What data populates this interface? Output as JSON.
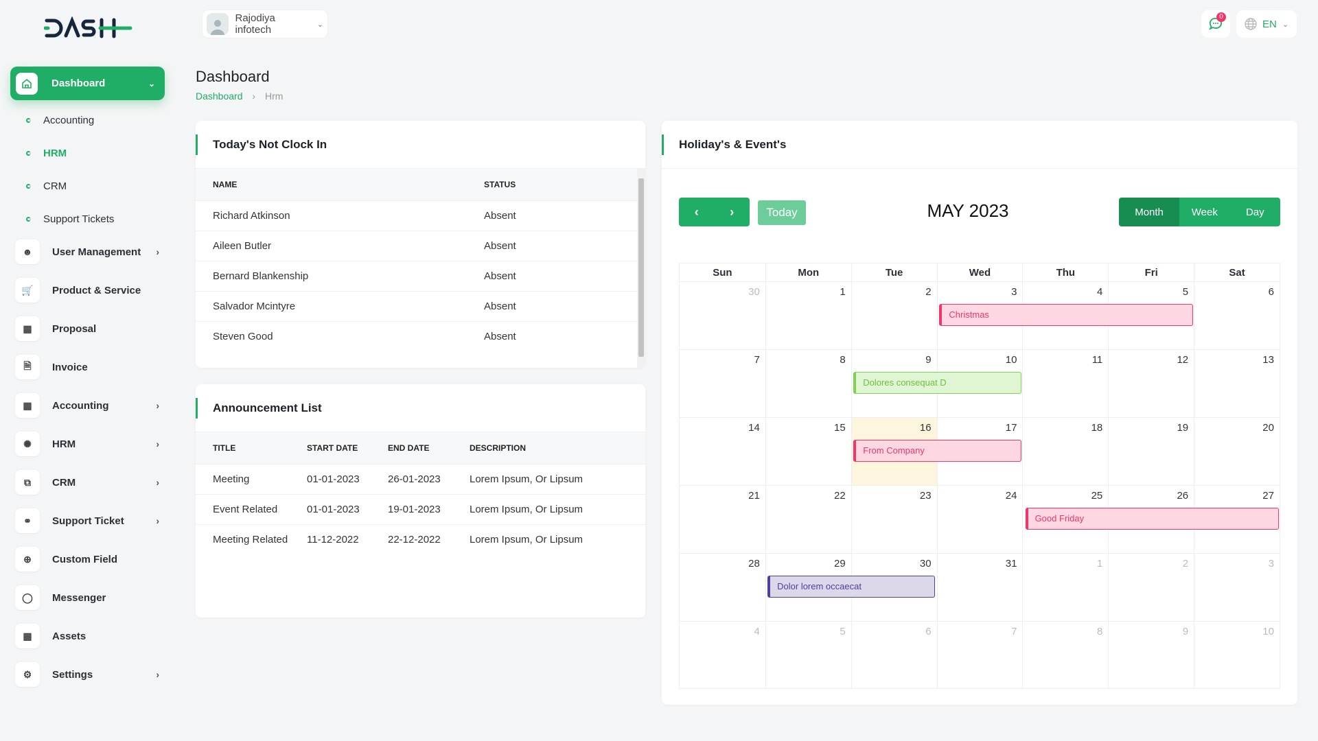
{
  "header": {
    "logo_text": "DASH",
    "company": "Rajodiya infotech",
    "notification_count": "0",
    "language": "EN"
  },
  "sidebar": {
    "dashboard": "Dashboard",
    "submenu": [
      {
        "label": "Accounting"
      },
      {
        "label": "HRM",
        "active": true
      },
      {
        "label": "CRM"
      },
      {
        "label": "Support Tickets"
      }
    ],
    "items": [
      {
        "label": "User Management",
        "icon": "users-icon",
        "chevron": true
      },
      {
        "label": "Product & Service",
        "icon": "cart-icon",
        "chevron": false
      },
      {
        "label": "Proposal",
        "icon": "proposal-icon",
        "chevron": false
      },
      {
        "label": "Invoice",
        "icon": "file-icon",
        "chevron": false
      },
      {
        "label": "Accounting",
        "icon": "apps-icon",
        "chevron": true
      },
      {
        "label": "HRM",
        "icon": "hrm-icon",
        "chevron": true
      },
      {
        "label": "CRM",
        "icon": "layers-icon",
        "chevron": true
      },
      {
        "label": "Support Ticket",
        "icon": "headphones-icon",
        "chevron": true
      },
      {
        "label": "Custom Field",
        "icon": "plus-circle-icon",
        "chevron": false
      },
      {
        "label": "Messenger",
        "icon": "message-icon",
        "chevron": false
      },
      {
        "label": "Assets",
        "icon": "calculator-icon",
        "chevron": false
      },
      {
        "label": "Settings",
        "icon": "gear-icon",
        "chevron": true
      }
    ]
  },
  "page": {
    "title": "Dashboard",
    "breadcrumb": [
      "Dashboard",
      "Hrm"
    ]
  },
  "not_clock_in": {
    "title": "Today's Not Clock In",
    "columns": [
      "NAME",
      "STATUS"
    ],
    "rows": [
      [
        "Richard Atkinson",
        "Absent"
      ],
      [
        "Aileen Butler",
        "Absent"
      ],
      [
        "Bernard Blankenship",
        "Absent"
      ],
      [
        "Salvador Mcintyre",
        "Absent"
      ],
      [
        "Steven Good",
        "Absent"
      ]
    ]
  },
  "announcements": {
    "title": "Announcement List",
    "columns": [
      "TITLE",
      "START DATE",
      "END DATE",
      "DESCRIPTION"
    ],
    "rows": [
      [
        "Meeting",
        "01-01-2023",
        "26-01-2023",
        "Lorem Ipsum, Or Lipsum"
      ],
      [
        "Event Related",
        "01-01-2023",
        "19-01-2023",
        "Lorem Ipsum, Or Lipsum"
      ],
      [
        "Meeting Related",
        "11-12-2022",
        "22-12-2022",
        "Lorem Ipsum, Or Lipsum"
      ]
    ]
  },
  "calendar": {
    "title": "Holiday's & Event's",
    "month_label": "MAY 2023",
    "today_label": "Today",
    "views": [
      "Month",
      "Week",
      "Day"
    ],
    "active_view": "Month",
    "weekdays": [
      "Sun",
      "Mon",
      "Tue",
      "Wed",
      "Thu",
      "Fri",
      "Sat"
    ],
    "weeks": [
      [
        "30",
        "1",
        "2",
        "3",
        "4",
        "5",
        "6"
      ],
      [
        "7",
        "8",
        "9",
        "10",
        "11",
        "12",
        "13"
      ],
      [
        "14",
        "15",
        "16",
        "17",
        "18",
        "19",
        "20"
      ],
      [
        "21",
        "22",
        "23",
        "24",
        "25",
        "26",
        "27"
      ],
      [
        "28",
        "29",
        "30",
        "31",
        "1",
        "2",
        "3"
      ],
      [
        "4",
        "5",
        "6",
        "7",
        "8",
        "9",
        "10"
      ]
    ],
    "today": "16",
    "events": [
      {
        "title": "Christmas",
        "week": 0,
        "start": 3,
        "end": 5,
        "bg": "#fdd7e2",
        "border": "#f0366b",
        "color": "#f0366b"
      },
      {
        "title": "Dolores consequat D",
        "week": 1,
        "start": 2,
        "end": 3,
        "bg": "#dff5d3",
        "border": "#7dd352",
        "color": "#6cc13f"
      },
      {
        "title": "From Company",
        "week": 2,
        "start": 2,
        "end": 3,
        "bg": "#fdd7e2",
        "border": "#f0366b",
        "color": "#f0366b"
      },
      {
        "title": "Good Friday",
        "week": 3,
        "start": 4,
        "end": 6,
        "bg": "#fdd7e2",
        "border": "#f0366b",
        "color": "#f0366b"
      },
      {
        "title": "Dolor lorem occaecat",
        "week": 4,
        "start": 1,
        "end": 2,
        "bg": "#dcd8ea",
        "border": "#4e3fa0",
        "color": "#4e3fa0"
      }
    ]
  },
  "colors": {
    "accent": "#20ad65",
    "accent_dark": "#178d51"
  }
}
